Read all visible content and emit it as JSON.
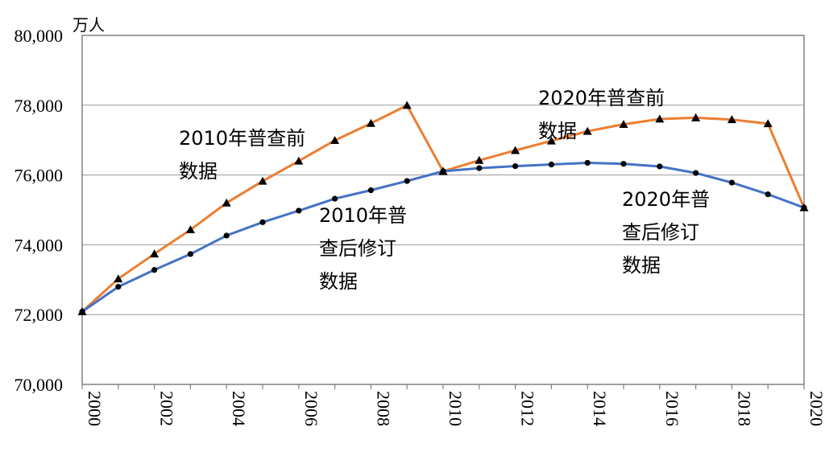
{
  "chart_data": {
    "type": "line",
    "ylabel": "万人",
    "ylim": [
      70000,
      80000
    ],
    "yticks": [
      "70,000",
      "72,000",
      "74,000",
      "76,000",
      "78,000",
      "80,000"
    ],
    "xticks": [
      "2000",
      "2002",
      "2004",
      "2006",
      "2008",
      "2010",
      "2012",
      "2014",
      "2016",
      "2018",
      "2020"
    ],
    "grid": "horizontal",
    "series": [
      {
        "name": "2010年普查前数据",
        "color": "#ED7D31",
        "marker": "triangle",
        "x": [
          2000,
          2001,
          2002,
          2003,
          2004,
          2005,
          2006,
          2007,
          2008,
          2009,
          2010
        ],
        "values": [
          72085,
          73025,
          73740,
          74432,
          75200,
          75825,
          76400,
          76990,
          77480,
          77995,
          76105
        ]
      },
      {
        "name": "2020年普查前数据",
        "color": "#ED7D31",
        "marker": "triangle",
        "x": [
          2010,
          2011,
          2012,
          2013,
          2014,
          2015,
          2016,
          2017,
          2018,
          2019,
          2020
        ],
        "values": [
          76105,
          76420,
          76704,
          76977,
          77253,
          77451,
          77603,
          77640,
          77586,
          77471,
          75064
        ]
      },
      {
        "name": "2010年普查后修订数据",
        "color": "#4472C4",
        "marker": "circle",
        "x": [
          2000,
          2001,
          2002,
          2003,
          2004,
          2005,
          2006,
          2007,
          2008,
          2009,
          2010
        ],
        "values": [
          72085,
          72797,
          73280,
          73736,
          74264,
          74647,
          74978,
          75321,
          75564,
          75828,
          76105
        ]
      },
      {
        "name": "2020年普查后修订数据",
        "color": "#4472C4",
        "marker": "circle",
        "x": [
          2010,
          2011,
          2012,
          2013,
          2014,
          2015,
          2016,
          2017,
          2018,
          2019,
          2020
        ],
        "values": [
          76105,
          76196,
          76254,
          76301,
          76349,
          76320,
          76245,
          76058,
          75782,
          75447,
          75064
        ]
      }
    ],
    "annotations": [
      {
        "id": "a1",
        "lines": [
          "2010年普查前",
          "数据"
        ]
      },
      {
        "id": "a2",
        "lines": [
          "2020年普查前",
          "数据"
        ]
      },
      {
        "id": "a3",
        "lines": [
          "2010年普",
          "查后修订",
          "数据"
        ]
      },
      {
        "id": "a4",
        "lines": [
          "2020年普",
          "查后修订",
          "数据"
        ]
      }
    ]
  }
}
